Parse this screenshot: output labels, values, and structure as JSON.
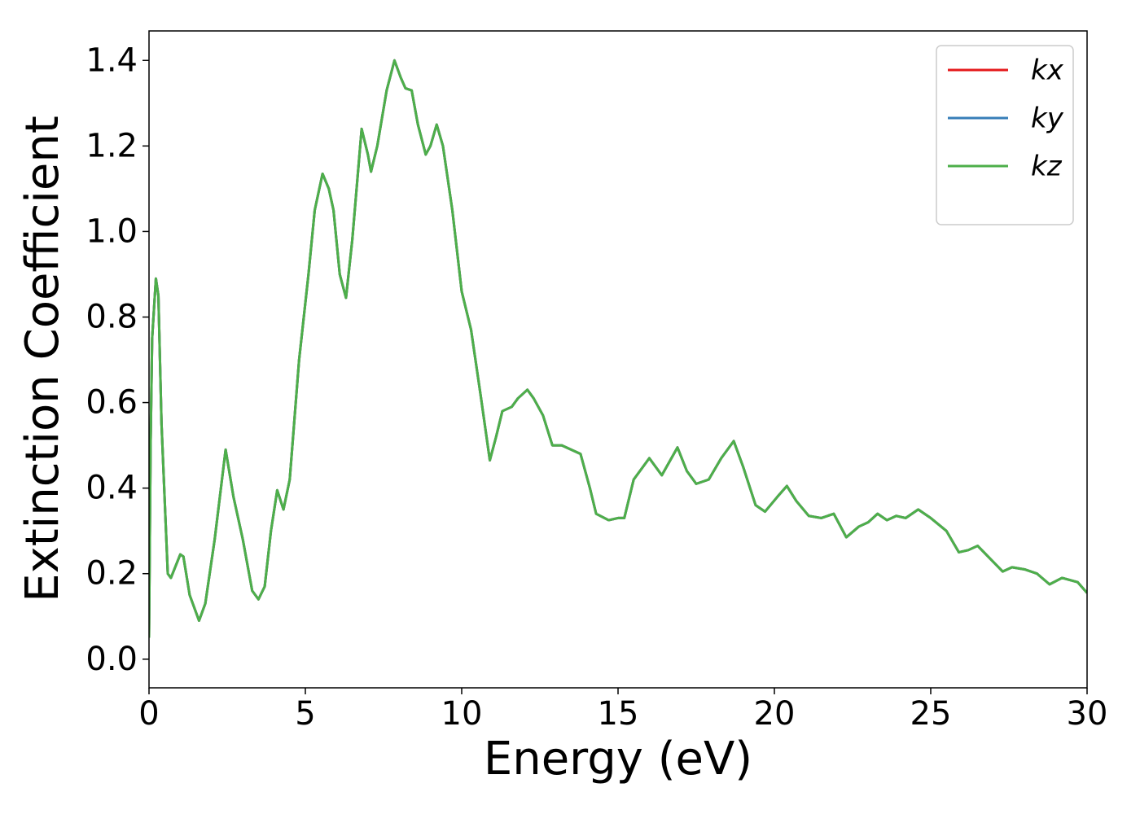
{
  "chart_data": {
    "type": "line",
    "xlabel": "Energy (eV)",
    "ylabel": "Extinction Coefficient",
    "x": [
      0,
      0.05,
      0.1,
      0.22,
      0.3,
      0.4,
      0.6,
      0.7,
      1.0,
      1.1,
      1.3,
      1.6,
      1.8,
      2.1,
      2.45,
      2.7,
      3.0,
      3.3,
      3.5,
      3.7,
      3.9,
      4.1,
      4.3,
      4.5,
      4.8,
      5.1,
      5.3,
      5.55,
      5.75,
      5.9,
      6.1,
      6.3,
      6.5,
      6.8,
      7.0,
      7.1,
      7.3,
      7.6,
      7.85,
      8.05,
      8.2,
      8.4,
      8.6,
      8.85,
      9.0,
      9.2,
      9.4,
      9.7,
      10.0,
      10.3,
      10.6,
      10.9,
      11.1,
      11.3,
      11.6,
      11.8,
      12.1,
      12.3,
      12.6,
      12.9,
      13.2,
      13.5,
      13.8,
      14.1,
      14.3,
      14.7,
      15.0,
      15.2,
      15.5,
      16.0,
      16.2,
      16.4,
      16.9,
      17.2,
      17.5,
      17.9,
      18.3,
      18.7,
      19.0,
      19.4,
      19.7,
      20.1,
      20.4,
      20.7,
      21.1,
      21.5,
      21.9,
      22.3,
      22.7,
      23.0,
      23.3,
      23.6,
      23.9,
      24.2,
      24.6,
      25.0,
      25.5,
      25.9,
      26.2,
      26.5,
      26.9,
      27.3,
      27.6,
      28.0,
      28.4,
      28.8,
      29.2,
      29.7,
      30
    ],
    "series": [
      {
        "name": "kx",
        "color": "#e41a1c",
        "values": [
          0.05,
          0.5,
          0.75,
          0.89,
          0.85,
          0.55,
          0.2,
          0.19,
          0.245,
          0.24,
          0.15,
          0.09,
          0.13,
          0.28,
          0.49,
          0.38,
          0.28,
          0.16,
          0.14,
          0.17,
          0.3,
          0.395,
          0.35,
          0.42,
          0.7,
          0.9,
          1.05,
          1.135,
          1.1,
          1.05,
          0.9,
          0.845,
          0.98,
          1.24,
          1.18,
          1.14,
          1.2,
          1.33,
          1.4,
          1.36,
          1.335,
          1.33,
          1.25,
          1.18,
          1.2,
          1.25,
          1.2,
          1.05,
          0.86,
          0.77,
          0.62,
          0.465,
          0.52,
          0.58,
          0.59,
          0.61,
          0.63,
          0.61,
          0.57,
          0.5,
          0.5,
          0.49,
          0.48,
          0.4,
          0.34,
          0.325,
          0.33,
          0.33,
          0.42,
          0.47,
          0.45,
          0.43,
          0.495,
          0.44,
          0.41,
          0.42,
          0.47,
          0.51,
          0.45,
          0.36,
          0.345,
          0.38,
          0.405,
          0.37,
          0.335,
          0.33,
          0.34,
          0.285,
          0.31,
          0.32,
          0.34,
          0.325,
          0.335,
          0.33,
          0.35,
          0.33,
          0.3,
          0.25,
          0.255,
          0.265,
          0.235,
          0.205,
          0.215,
          0.21,
          0.2,
          0.175,
          0.19,
          0.18,
          0.155
        ]
      },
      {
        "name": "ky",
        "color": "#377eb8",
        "values": [
          0.05,
          0.5,
          0.75,
          0.89,
          0.85,
          0.55,
          0.2,
          0.19,
          0.245,
          0.24,
          0.15,
          0.09,
          0.13,
          0.28,
          0.49,
          0.38,
          0.28,
          0.16,
          0.14,
          0.17,
          0.3,
          0.395,
          0.35,
          0.42,
          0.7,
          0.9,
          1.05,
          1.135,
          1.1,
          1.05,
          0.9,
          0.845,
          0.98,
          1.24,
          1.18,
          1.14,
          1.2,
          1.33,
          1.4,
          1.36,
          1.335,
          1.33,
          1.25,
          1.18,
          1.2,
          1.25,
          1.2,
          1.05,
          0.86,
          0.77,
          0.62,
          0.465,
          0.52,
          0.58,
          0.59,
          0.61,
          0.63,
          0.61,
          0.57,
          0.5,
          0.5,
          0.49,
          0.48,
          0.4,
          0.34,
          0.325,
          0.33,
          0.33,
          0.42,
          0.47,
          0.45,
          0.43,
          0.495,
          0.44,
          0.41,
          0.42,
          0.47,
          0.51,
          0.45,
          0.36,
          0.345,
          0.38,
          0.405,
          0.37,
          0.335,
          0.33,
          0.34,
          0.285,
          0.31,
          0.32,
          0.34,
          0.325,
          0.335,
          0.33,
          0.35,
          0.33,
          0.3,
          0.25,
          0.255,
          0.265,
          0.235,
          0.205,
          0.215,
          0.21,
          0.2,
          0.175,
          0.19,
          0.18,
          0.155
        ]
      },
      {
        "name": "kz",
        "color": "#4daf4a",
        "values": [
          0.05,
          0.5,
          0.75,
          0.89,
          0.85,
          0.55,
          0.2,
          0.19,
          0.245,
          0.24,
          0.15,
          0.09,
          0.13,
          0.28,
          0.49,
          0.38,
          0.28,
          0.16,
          0.14,
          0.17,
          0.3,
          0.395,
          0.35,
          0.42,
          0.7,
          0.9,
          1.05,
          1.135,
          1.1,
          1.05,
          0.9,
          0.845,
          0.98,
          1.24,
          1.18,
          1.14,
          1.2,
          1.33,
          1.4,
          1.36,
          1.335,
          1.33,
          1.25,
          1.18,
          1.2,
          1.25,
          1.2,
          1.05,
          0.86,
          0.77,
          0.62,
          0.465,
          0.52,
          0.58,
          0.59,
          0.61,
          0.63,
          0.61,
          0.57,
          0.5,
          0.5,
          0.49,
          0.48,
          0.4,
          0.34,
          0.325,
          0.33,
          0.33,
          0.42,
          0.47,
          0.45,
          0.43,
          0.495,
          0.44,
          0.41,
          0.42,
          0.47,
          0.51,
          0.45,
          0.36,
          0.345,
          0.38,
          0.405,
          0.37,
          0.335,
          0.33,
          0.34,
          0.285,
          0.31,
          0.32,
          0.34,
          0.325,
          0.335,
          0.33,
          0.35,
          0.33,
          0.3,
          0.25,
          0.255,
          0.265,
          0.235,
          0.205,
          0.215,
          0.21,
          0.2,
          0.175,
          0.19,
          0.18,
          0.155
        ]
      }
    ],
    "xlim": [
      0,
      30
    ],
    "xticks": [
      0,
      5,
      10,
      15,
      20,
      25,
      30
    ],
    "ylim": [
      -0.067,
      1.469
    ],
    "yticks": [
      {
        "value": 0,
        "label": "0.0"
      },
      0.2,
      0.4,
      0.6,
      0.8,
      {
        "value": 1,
        "label": "1.0"
      },
      1.2,
      1.4
    ],
    "legend": "upper right",
    "grid": false
  }
}
